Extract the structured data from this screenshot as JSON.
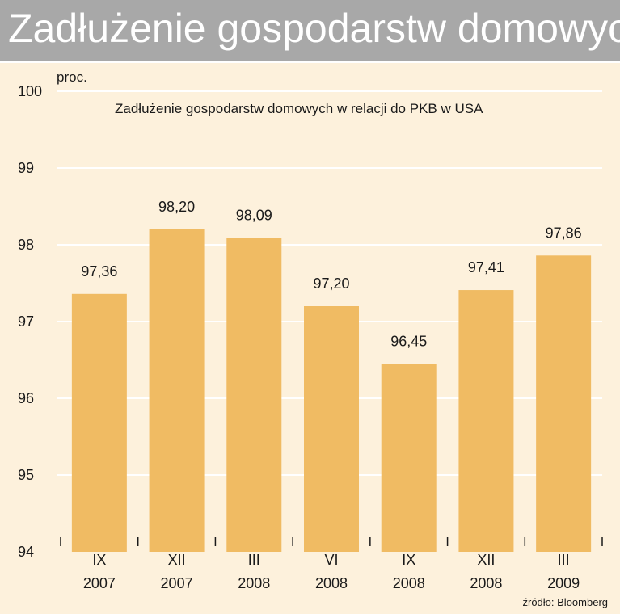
{
  "header": {
    "title": "Zadłużenie gospodarstw domowych"
  },
  "source": "źródło: Bloomberg",
  "colors": {
    "bar": "#f0bb63",
    "background": "#fdf1dc",
    "grid": "#ffffff",
    "banner": "#a8a8a8"
  },
  "chart_data": {
    "type": "bar",
    "title": "Zadłużenie gospodarstw domowych w relacji do PKB w USA",
    "ylabel": "proc.",
    "ylim": [
      94,
      100
    ],
    "yticks": [
      "94",
      "95",
      "96",
      "97",
      "98",
      "99",
      "100"
    ],
    "grid": true,
    "categories": [
      [
        "IX",
        "2007"
      ],
      [
        "XII",
        "2007"
      ],
      [
        "III",
        "2008"
      ],
      [
        "VI",
        "2008"
      ],
      [
        "IX",
        "2008"
      ],
      [
        "XII",
        "2008"
      ],
      [
        "III",
        "2009"
      ]
    ],
    "values": [
      97.36,
      98.2,
      98.09,
      97.2,
      96.45,
      97.41,
      97.86
    ],
    "value_labels": [
      "97,36",
      "98,20",
      "98,09",
      "97,20",
      "96,45",
      "97,41",
      "97,86"
    ]
  }
}
